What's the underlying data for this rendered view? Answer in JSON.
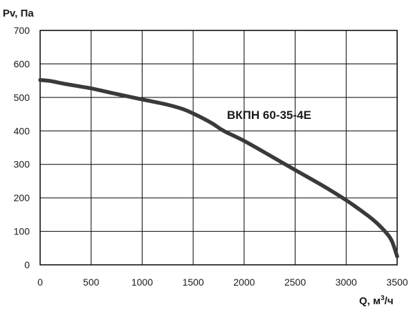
{
  "chart_data": {
    "type": "line",
    "title": "",
    "xlabel": "Q, м",
    "xlabel_sup": "3",
    "xlabel_suffix": "/ч",
    "ylabel": "Pv, Па",
    "xlim": [
      0,
      3500
    ],
    "ylim": [
      0,
      700
    ],
    "x_ticks": [
      0,
      500,
      1000,
      1500,
      2000,
      2500,
      3000,
      3500
    ],
    "y_ticks": [
      0,
      100,
      200,
      300,
      400,
      500,
      600,
      700
    ],
    "grid": true,
    "legend": "none",
    "annotation": "ВКПН 60-35-4Е",
    "series": [
      {
        "color": "#3a3a3a",
        "x": [
          0,
          100,
          250,
          500,
          750,
          1000,
          1250,
          1400,
          1500,
          1600,
          1700,
          1800,
          2000,
          2250,
          2500,
          2750,
          3000,
          3200,
          3300,
          3400,
          3450,
          3500
        ],
        "y": [
          552,
          549,
          540,
          527,
          510,
          494,
          478,
          465,
          452,
          437,
          420,
          400,
          370,
          327,
          283,
          240,
          193,
          150,
          125,
          93,
          70,
          25
        ]
      }
    ]
  }
}
